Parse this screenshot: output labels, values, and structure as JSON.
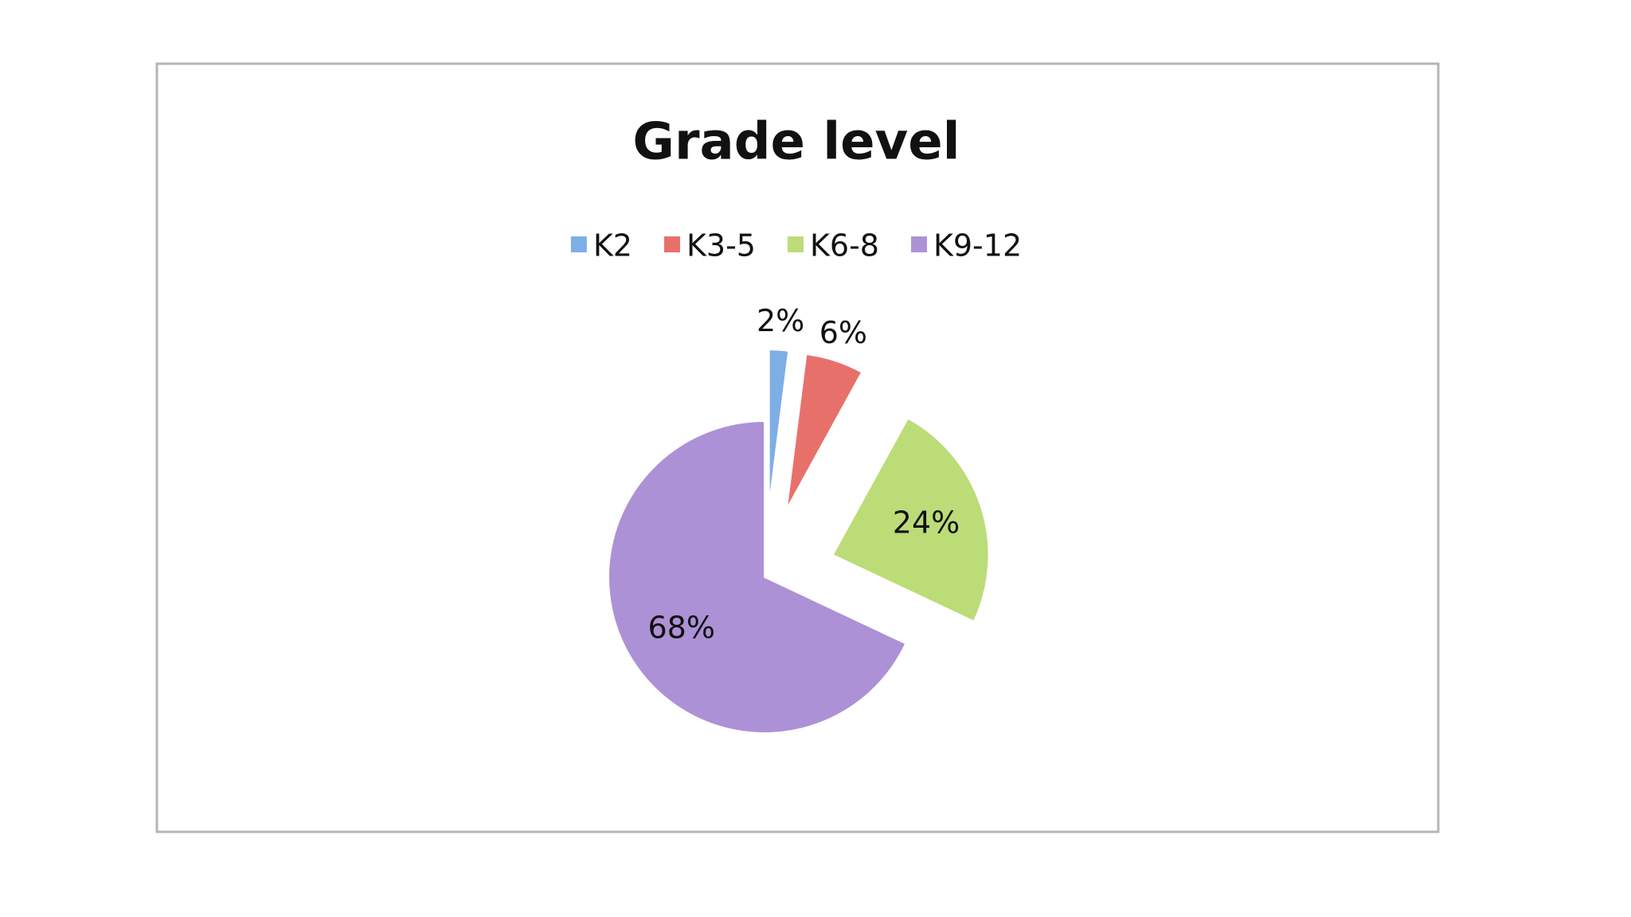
{
  "chart_data": {
    "type": "pie",
    "title": "Grade level",
    "categories": [
      "K2",
      "K3-5",
      "K6-8",
      "K9-12"
    ],
    "values": [
      2,
      6,
      24,
      68
    ],
    "value_labels": [
      "2%",
      "6%",
      "24%",
      "68%"
    ],
    "colors": [
      "#7eaee6",
      "#e8706b",
      "#bcdc78",
      "#ad91d6"
    ],
    "legend": "top"
  }
}
